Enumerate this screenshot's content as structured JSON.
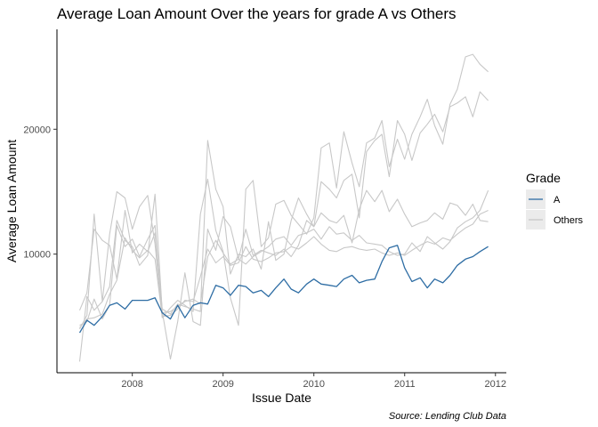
{
  "chart_data": {
    "type": "line",
    "title": "Average Loan Amount Over the years for grade A vs Others",
    "xlabel": "Issue Date",
    "ylabel": "Average Loan Amount",
    "caption": "Source: Lending Club Data",
    "x_ticks": [
      "2008",
      "2009",
      "2010",
      "2011",
      "2012"
    ],
    "x_tick_values": [
      2008,
      2009,
      2010,
      2011,
      2012
    ],
    "y_ticks": [
      "10000",
      "20000"
    ],
    "y_tick_values": [
      10000,
      20000
    ],
    "xlim": [
      2007.17,
      2012.12
    ],
    "ylim": [
      500,
      28000
    ],
    "grid": false,
    "legend": {
      "title": "Grade",
      "position": "right",
      "entries": [
        {
          "label": "A",
          "color": "#2e6da4"
        },
        {
          "label": "Others",
          "color": "#c8c8c8"
        }
      ]
    },
    "colors": {
      "A": "#2e6da4",
      "Others": "#c8c8c8"
    },
    "series": [
      {
        "name": "A",
        "color": "#2e6da4",
        "x": [
          2007.42,
          2007.5,
          2007.58,
          2007.67,
          2007.75,
          2007.83,
          2007.92,
          2008.0,
          2008.08,
          2008.17,
          2008.25,
          2008.33,
          2008.42,
          2008.5,
          2008.58,
          2008.67,
          2008.75,
          2008.83,
          2008.92,
          2009.0,
          2009.08,
          2009.17,
          2009.25,
          2009.33,
          2009.42,
          2009.5,
          2009.58,
          2009.67,
          2009.75,
          2009.83,
          2009.92,
          2010.0,
          2010.08,
          2010.17,
          2010.25,
          2010.33,
          2010.42,
          2010.5,
          2010.58,
          2010.67,
          2010.75,
          2010.83,
          2010.92,
          2011.0,
          2011.08,
          2011.17,
          2011.25,
          2011.33,
          2011.42,
          2011.5,
          2011.58,
          2011.67,
          2011.75,
          2011.83,
          2011.92
        ],
        "y": [
          3700,
          4700,
          4300,
          5000,
          5900,
          6100,
          5600,
          6300,
          6300,
          6300,
          6500,
          5300,
          4800,
          5900,
          4900,
          5900,
          6100,
          6000,
          7500,
          7300,
          6700,
          7500,
          7400,
          6900,
          7100,
          6600,
          7300,
          8000,
          7200,
          6900,
          7600,
          8000,
          7600,
          7500,
          7400,
          8000,
          8300,
          7700,
          7900,
          8000,
          9400,
          10500,
          10700,
          8900,
          7800,
          8100,
          7300,
          8000,
          7700,
          8300,
          9100,
          9600,
          9800,
          10200,
          10600
        ]
      },
      {
        "name": "Others",
        "color": "#c8c8c8",
        "x": [
          2007.42,
          2007.5,
          2007.58,
          2007.67,
          2007.75,
          2007.83,
          2007.92,
          2008.0,
          2008.08,
          2008.17,
          2008.25,
          2008.33,
          2008.42,
          2008.5,
          2008.58,
          2008.67,
          2008.75,
          2008.83,
          2008.92,
          2009.0,
          2009.08,
          2009.17,
          2009.25,
          2009.33,
          2009.42,
          2009.5,
          2009.58,
          2009.67,
          2009.75,
          2009.83,
          2009.92,
          2010.0,
          2010.08,
          2010.17,
          2010.25,
          2010.33,
          2010.42,
          2010.5,
          2010.58,
          2010.67,
          2010.75,
          2010.83,
          2010.92,
          2011.0,
          2011.08,
          2011.17,
          2011.25,
          2011.33,
          2011.42,
          2011.5,
          2011.58,
          2011.67,
          2011.75,
          2011.83,
          2011.92
        ],
        "y": [
          5500,
          6900,
          12000,
          11100,
          10700,
          8000,
          13500,
          10100,
          10800,
          10200,
          11700,
          5600,
          5200,
          6000,
          5800,
          5600,
          5400,
          19100,
          15200,
          13800,
          8400,
          10000,
          9800,
          10400,
          8800,
          12600,
          9500,
          10000,
          12700,
          14500,
          13200,
          12200,
          15800,
          15200,
          14500,
          15900,
          16400,
          12900,
          18200,
          19100,
          19600,
          16200,
          20700,
          19600,
          17500,
          19700,
          20400,
          21200,
          19800,
          21800,
          22100,
          22600,
          21000,
          23000,
          22300
        ]
      },
      {
        "name": "Others",
        "color": "#c8c8c8",
        "x": [
          2007.42,
          2007.5,
          2007.58,
          2007.67,
          2007.75,
          2007.83,
          2007.92,
          2008.0,
          2008.08,
          2008.17,
          2008.25,
          2008.33,
          2008.42,
          2008.5,
          2008.58,
          2008.67,
          2008.75,
          2008.83,
          2008.92,
          2009.0,
          2009.08,
          2009.17,
          2009.25,
          2009.33,
          2009.42,
          2009.5,
          2009.58,
          2009.67,
          2009.75,
          2009.83,
          2009.92,
          2010.0,
          2010.08,
          2010.17,
          2010.25,
          2010.33,
          2010.42,
          2010.5,
          2010.58,
          2010.67,
          2010.75,
          2010.83,
          2010.92,
          2011.0,
          2011.08,
          2011.17,
          2011.25,
          2011.33,
          2011.42,
          2011.5,
          2011.58,
          2011.67,
          2011.75,
          2011.83,
          2011.92
        ],
        "y": [
          4000,
          5100,
          13200,
          6200,
          11600,
          15000,
          14500,
          12000,
          13800,
          14700,
          10800,
          4900,
          5700,
          6300,
          5900,
          5400,
          13200,
          16000,
          11900,
          10200,
          6500,
          4300,
          15200,
          15900,
          10600,
          11300,
          14000,
          14300,
          13100,
          12400,
          11600,
          12900,
          18500,
          18900,
          15300,
          19800,
          17300,
          15400,
          18900,
          19300,
          20700,
          17000,
          19200,
          17600,
          19600,
          21000,
          22400,
          20300,
          18800,
          22000,
          23200,
          25800,
          26000,
          25200,
          24600
        ]
      },
      {
        "name": "Others",
        "color": "#c8c8c8",
        "x": [
          2007.42,
          2007.5,
          2007.58,
          2007.67,
          2007.75,
          2007.83,
          2007.92,
          2008.0,
          2008.08,
          2008.17,
          2008.25,
          2008.33,
          2008.42,
          2008.5,
          2008.58,
          2008.67,
          2008.75,
          2008.83,
          2008.92,
          2009.0,
          2009.08,
          2009.17,
          2009.25,
          2009.33,
          2009.42,
          2009.5,
          2009.58,
          2009.67,
          2009.75,
          2009.83,
          2009.92,
          2010.0,
          2010.08,
          2010.17,
          2010.25,
          2010.33,
          2010.42,
          2010.5,
          2010.58,
          2010.67,
          2010.75,
          2010.83,
          2010.92,
          2011.0,
          2011.08,
          2011.17,
          2011.25,
          2011.33,
          2011.42,
          2011.5,
          2011.58,
          2011.67,
          2011.75,
          2011.83,
          2011.92
        ],
        "y": [
          1400,
          6600,
          5500,
          6200,
          7400,
          12700,
          11100,
          10600,
          9100,
          9900,
          14800,
          5400,
          1600,
          4600,
          8500,
          4600,
          4300,
          12000,
          10300,
          13000,
          12200,
          9600,
          12000,
          9900,
          10300,
          10100,
          9900,
          10400,
          9800,
          10700,
          12700,
          12200,
          13300,
          12700,
          12500,
          13100,
          10900,
          13600,
          15100,
          14200,
          15100,
          13400,
          14400,
          13200,
          12200,
          12500,
          12700,
          13300,
          12800,
          14100,
          13900,
          13100,
          14000,
          12700,
          12600
        ]
      },
      {
        "name": "Others",
        "color": "#c8c8c8",
        "x": [
          2007.42,
          2007.5,
          2007.58,
          2007.67,
          2007.75,
          2007.83,
          2007.92,
          2008.0,
          2008.08,
          2008.17,
          2008.25,
          2008.33,
          2008.42,
          2008.5,
          2008.58,
          2008.67,
          2008.75,
          2008.83,
          2008.92,
          2009.0,
          2009.08,
          2009.17,
          2009.25,
          2009.33,
          2009.42,
          2009.5,
          2009.58,
          2009.67,
          2009.75,
          2009.83,
          2009.92,
          2010.0,
          2010.08,
          2010.17,
          2010.25,
          2010.33,
          2010.42,
          2010.5,
          2010.58,
          2010.67,
          2010.75,
          2010.83,
          2010.92,
          2011.0,
          2011.08,
          2011.17,
          2011.25,
          2011.33,
          2011.42,
          2011.5,
          2011.58,
          2011.67,
          2011.75,
          2011.83,
          2011.92
        ],
        "y": [
          4300,
          4600,
          6400,
          4800,
          5900,
          12300,
          10600,
          11200,
          9800,
          11200,
          12300,
          5300,
          5400,
          5800,
          6200,
          6400,
          6000,
          9800,
          11100,
          10100,
          9200,
          9600,
          9200,
          9800,
          10200,
          10600,
          11200,
          11400,
          10700,
          11500,
          11700,
          12000,
          11200,
          12200,
          11600,
          11700,
          11100,
          11500,
          10900,
          10800,
          10700,
          10200,
          9900,
          10000,
          10900,
          10200,
          11400,
          10900,
          10400,
          11000,
          12100,
          12600,
          12900,
          13500,
          15100
        ]
      },
      {
        "name": "Others",
        "color": "#c8c8c8",
        "x": [
          2007.42,
          2007.5,
          2007.58,
          2007.67,
          2007.75,
          2007.83,
          2007.92,
          2008.0,
          2008.08,
          2008.17,
          2008.25,
          2008.33,
          2008.42,
          2008.5,
          2008.58,
          2008.67,
          2008.75,
          2008.83,
          2008.92,
          2009.0,
          2009.08,
          2009.17,
          2009.25,
          2009.33,
          2009.42,
          2009.5,
          2009.58,
          2009.67,
          2009.75,
          2009.83,
          2009.92,
          2010.0,
          2010.08,
          2010.17,
          2010.25,
          2010.33,
          2010.42,
          2010.5,
          2010.58,
          2010.67,
          2010.75,
          2010.83,
          2010.92,
          2011.0,
          2011.08,
          2011.17,
          2011.25,
          2011.33,
          2011.42,
          2011.5,
          2011.58,
          2011.67,
          2011.75,
          2011.83,
          2011.92
        ],
        "y": [
          4100,
          4800,
          4900,
          5200,
          6800,
          7900,
          11300,
          10300,
          9700,
          10300,
          9600,
          5000,
          5100,
          5600,
          6300,
          6200,
          8200,
          10400,
          9300,
          9800,
          9100,
          9300,
          10600,
          9600,
          9400,
          9700,
          10100,
          10200,
          10600,
          10400,
          10900,
          11400,
          10800,
          10300,
          10200,
          10500,
          10600,
          10400,
          10300,
          10400,
          10100,
          9900,
          10100,
          9900,
          10300,
          10700,
          11000,
          10800,
          11300,
          11100,
          11600,
          12100,
          12400,
          13200,
          13500
        ]
      }
    ]
  }
}
